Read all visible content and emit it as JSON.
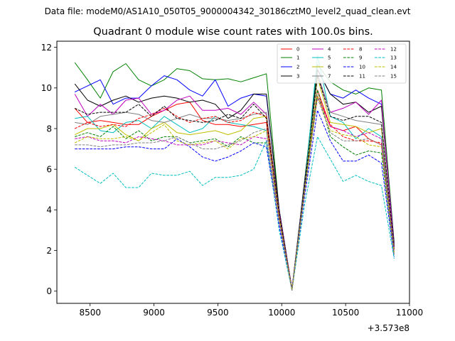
{
  "header": {
    "file_label": "Data file: modeM0/AS1A10_050T05_9000004342_30186cztM0_level2_quad_clean.evt"
  },
  "chart_data": {
    "type": "line",
    "title": "Quadrant 0 module wise count rates with 100.0s bins.",
    "xlabel": "",
    "ylabel": "",
    "x_offset_label": "+3.573e8",
    "xlim": [
      8240,
      11000
    ],
    "ylim": [
      -0.6,
      12.3
    ],
    "xticks": [
      8500,
      9000,
      9500,
      10000,
      10500,
      11000
    ],
    "yticks": [
      0,
      2,
      4,
      6,
      8,
      10,
      12
    ],
    "grid": false,
    "legend_position": "top-right",
    "x": [
      8380,
      8480,
      8580,
      8680,
      8780,
      8880,
      8980,
      9080,
      9180,
      9280,
      9380,
      9480,
      9580,
      9680,
      9780,
      9880,
      9980,
      10080,
      10180,
      10280,
      10380,
      10480,
      10580,
      10680,
      10780,
      10880
    ],
    "series": [
      {
        "name": "0",
        "color": "#ff0000",
        "dash": "solid",
        "values": [
          9.0,
          8.3,
          8.4,
          8.3,
          8.2,
          8.2,
          8.6,
          8.9,
          9.2,
          9.3,
          8.4,
          8.2,
          8.2,
          8.1,
          8.2,
          8.3,
          3.8,
          0.1,
          5.0,
          9.9,
          8.1,
          7.9,
          8.1,
          7.5,
          7.2,
          2.2
        ]
      },
      {
        "name": "1",
        "color": "#008000",
        "dash": "solid",
        "values": [
          11.25,
          10.4,
          9.5,
          10.8,
          11.2,
          10.4,
          10.1,
          10.4,
          10.95,
          10.85,
          10.45,
          10.4,
          10.45,
          10.3,
          10.5,
          10.7,
          4.0,
          0.1,
          5.5,
          11.15,
          10.3,
          9.9,
          9.7,
          10.0,
          9.9,
          2.4
        ]
      },
      {
        "name": "2",
        "color": "#0000ff",
        "dash": "solid",
        "values": [
          9.8,
          10.1,
          10.4,
          9.2,
          9.5,
          9.5,
          10.1,
          10.6,
          10.4,
          9.9,
          9.6,
          10.4,
          9.1,
          9.5,
          9.7,
          9.6,
          4.0,
          0.1,
          5.4,
          10.9,
          9.7,
          9.5,
          9.9,
          9.5,
          9.2,
          2.3
        ]
      },
      {
        "name": "3",
        "color": "#000000",
        "dash": "solid",
        "values": [
          10.2,
          9.4,
          9.1,
          9.4,
          9.6,
          9.3,
          9.5,
          9.6,
          9.5,
          9.3,
          9.4,
          9.2,
          8.5,
          8.9,
          9.7,
          9.7,
          4.0,
          0.1,
          5.4,
          10.9,
          9.7,
          9.2,
          9.3,
          8.8,
          9.1,
          2.3
        ]
      },
      {
        "name": "4",
        "color": "#bf00bf",
        "dash": "solid",
        "values": [
          9.7,
          8.6,
          9.2,
          8.7,
          9.4,
          9.5,
          8.7,
          8.9,
          9.4,
          9.6,
          8.9,
          8.9,
          9.0,
          8.7,
          9.3,
          8.7,
          3.9,
          0.1,
          5.3,
          10.6,
          8.8,
          9.0,
          9.3,
          8.7,
          9.4,
          2.2
        ]
      },
      {
        "name": "5",
        "color": "#00bfbf",
        "dash": "solid",
        "values": [
          8.5,
          8.6,
          7.9,
          7.8,
          8.3,
          8.4,
          8.0,
          8.6,
          8.2,
          7.8,
          8.0,
          8.6,
          8.3,
          8.2,
          8.1,
          7.9,
          3.6,
          0.05,
          5.2,
          11.6,
          8.6,
          8.3,
          7.5,
          8.0,
          7.6,
          2.1
        ]
      },
      {
        "name": "6",
        "color": "#bfbf00",
        "dash": "solid",
        "values": [
          7.7,
          8.0,
          8.0,
          8.2,
          7.7,
          7.4,
          8.0,
          8.3,
          7.8,
          7.7,
          7.8,
          7.9,
          7.7,
          7.9,
          8.5,
          8.6,
          3.7,
          0.05,
          5.1,
          10.5,
          8.3,
          8.2,
          8.1,
          7.8,
          8.0,
          2.0
        ]
      },
      {
        "name": "7",
        "color": "#808080",
        "dash": "solid",
        "values": [
          8.3,
          8.2,
          8.6,
          8.7,
          8.8,
          8.7,
          8.4,
          8.3,
          8.5,
          8.7,
          8.5,
          8.5,
          8.4,
          8.5,
          8.7,
          8.8,
          3.8,
          0.05,
          5.2,
          10.7,
          8.8,
          8.6,
          8.4,
          8.3,
          8.2,
          2.1
        ]
      },
      {
        "name": "8",
        "color": "#ff0000",
        "dash": "dashed",
        "values": [
          8.0,
          8.3,
          8.1,
          8.2,
          8.1,
          8.5,
          8.7,
          9.0,
          8.6,
          8.3,
          8.5,
          8.6,
          8.3,
          8.4,
          8.8,
          8.6,
          3.8,
          0.05,
          5.1,
          9.6,
          8.2,
          7.6,
          7.4,
          7.4,
          7.3,
          2.0
        ]
      },
      {
        "name": "9",
        "color": "#008000",
        "dash": "dashed",
        "values": [
          7.6,
          7.8,
          7.6,
          8.1,
          7.5,
          7.9,
          7.4,
          7.6,
          7.6,
          7.3,
          7.4,
          7.5,
          7.1,
          7.6,
          7.3,
          7.3,
          3.5,
          0.05,
          5.0,
          9.9,
          7.6,
          7.1,
          6.7,
          6.9,
          6.8,
          1.8
        ]
      },
      {
        "name": "10",
        "color": "#0000ff",
        "dash": "dashed",
        "values": [
          7.0,
          7.0,
          7.0,
          7.0,
          7.1,
          7.1,
          7.0,
          7.0,
          7.5,
          7.1,
          6.6,
          6.4,
          6.6,
          6.9,
          7.3,
          7.1,
          3.2,
          0.05,
          4.7,
          8.9,
          7.4,
          6.4,
          6.4,
          6.7,
          6.3,
          1.7
        ]
      },
      {
        "name": "11",
        "color": "#000000",
        "dash": "dashed",
        "values": [
          9.0,
          8.7,
          8.8,
          8.8,
          8.8,
          9.2,
          8.6,
          9.1,
          8.5,
          8.4,
          8.3,
          8.4,
          8.7,
          8.5,
          9.2,
          8.5,
          3.8,
          0.05,
          5.2,
          10.6,
          8.6,
          8.4,
          8.6,
          8.6,
          8.3,
          2.1
        ]
      },
      {
        "name": "12",
        "color": "#bf00bf",
        "dash": "dashed",
        "values": [
          7.5,
          7.6,
          7.4,
          7.4,
          7.3,
          7.6,
          7.5,
          7.4,
          7.2,
          7.2,
          7.2,
          7.4,
          7.3,
          7.2,
          7.6,
          7.5,
          3.4,
          0.05,
          4.9,
          9.6,
          8.1,
          7.9,
          7.6,
          7.8,
          7.5,
          1.9
        ]
      },
      {
        "name": "13",
        "color": "#00bfbf",
        "dash": "dashed",
        "values": [
          6.1,
          5.7,
          5.3,
          5.8,
          5.1,
          5.1,
          5.8,
          5.7,
          5.7,
          5.9,
          5.2,
          5.6,
          5.6,
          5.7,
          6.0,
          7.4,
          3.0,
          0.05,
          4.3,
          7.6,
          6.5,
          5.4,
          5.7,
          5.4,
          5.2,
          1.6
        ]
      },
      {
        "name": "14",
        "color": "#bfbf00",
        "dash": "dashed",
        "values": [
          7.3,
          7.6,
          7.5,
          7.5,
          7.6,
          7.4,
          7.8,
          8.2,
          7.4,
          7.2,
          7.3,
          7.4,
          7.0,
          7.5,
          7.6,
          7.9,
          3.6,
          0.05,
          5.0,
          9.6,
          7.9,
          7.7,
          7.6,
          7.2,
          7.1,
          1.9
        ]
      },
      {
        "name": "15",
        "color": "#808080",
        "dash": "dashed",
        "values": [
          7.2,
          7.2,
          7.1,
          7.2,
          7.2,
          7.3,
          7.3,
          7.4,
          7.6,
          7.3,
          7.0,
          7.0,
          7.2,
          7.4,
          7.8,
          8.0,
          3.5,
          0.05,
          4.9,
          9.5,
          7.8,
          7.4,
          7.4,
          7.5,
          7.2,
          1.8
        ]
      }
    ]
  }
}
